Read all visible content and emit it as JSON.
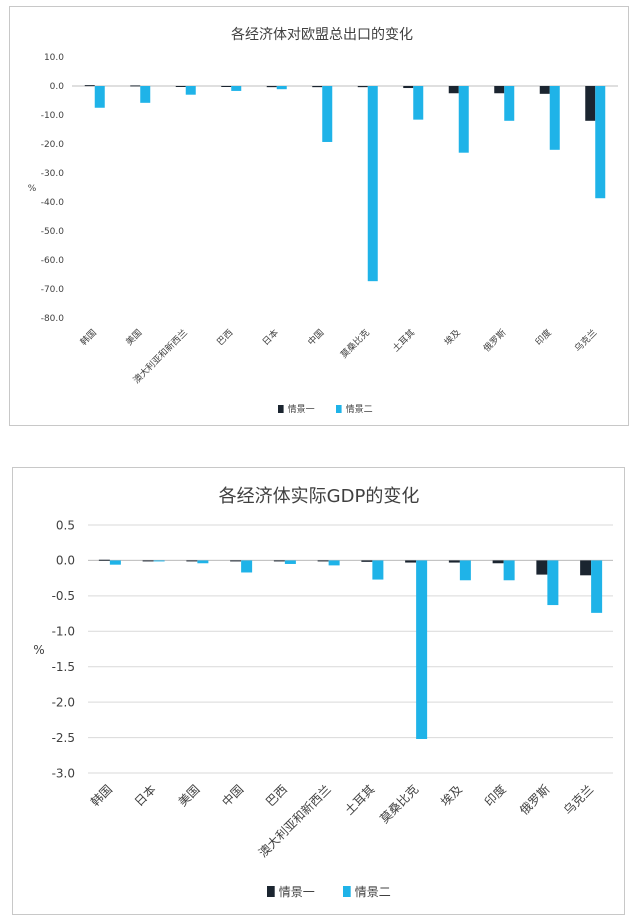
{
  "chart_data": [
    {
      "type": "bar",
      "title": "各经济体对欧盟总出口的变化",
      "ylabel": "%",
      "xlabel": "",
      "ylim": [
        -80,
        10
      ],
      "yticks": [
        "10.0",
        "0.0",
        "-10.0",
        "-20.0",
        "-30.0",
        "-40.0",
        "-50.0",
        "-60.0",
        "-70.0",
        "-80.0"
      ],
      "categories": [
        "韩国",
        "美国",
        "澳大利亚和新西兰",
        "巴西",
        "日本",
        "中国",
        "莫桑比克",
        "土耳其",
        "埃及",
        "俄罗斯",
        "印度",
        "乌克兰"
      ],
      "series": [
        {
          "name": "情景一",
          "color": "#1b2530",
          "values": [
            0.3,
            0.2,
            -0.3,
            -0.3,
            -0.4,
            -0.4,
            -0.4,
            -0.7,
            -2.5,
            -2.5,
            -2.7,
            -12.0
          ]
        },
        {
          "name": "情景二",
          "color": "#1fb3e8",
          "values": [
            -7.5,
            -5.8,
            -3.0,
            -1.7,
            -1.1,
            -19.3,
            -67.3,
            -11.6,
            -23.0,
            -12.0,
            -22.0,
            -38.7
          ]
        }
      ],
      "legend": "bottom",
      "grid": false
    },
    {
      "type": "bar",
      "title": "各经济体实际GDP的变化",
      "ylabel": "%",
      "xlabel": "",
      "ylim": [
        -3.0,
        0.5
      ],
      "yticks": [
        "0.5",
        "0.0",
        "-0.5",
        "-1.0",
        "-1.5",
        "-2.0",
        "-2.5",
        "-3.0"
      ],
      "categories": [
        "韩国",
        "日本",
        "美国",
        "中国",
        "巴西",
        "澳大利亚和新西兰",
        "土耳其",
        "莫桑比克",
        "埃及",
        "印度",
        "俄罗斯",
        "乌克兰"
      ],
      "series": [
        {
          "name": "情景一",
          "color": "#1b2530",
          "values": [
            0.01,
            -0.01,
            -0.01,
            -0.01,
            -0.01,
            -0.01,
            -0.02,
            -0.03,
            -0.03,
            -0.04,
            -0.2,
            -0.21
          ]
        },
        {
          "name": "情景二",
          "color": "#1fb3e8",
          "values": [
            -0.06,
            -0.01,
            -0.04,
            -0.17,
            -0.05,
            -0.07,
            -0.27,
            -2.52,
            -0.28,
            -0.28,
            -0.63,
            -0.74
          ]
        }
      ],
      "legend": "bottom",
      "grid": true
    }
  ]
}
